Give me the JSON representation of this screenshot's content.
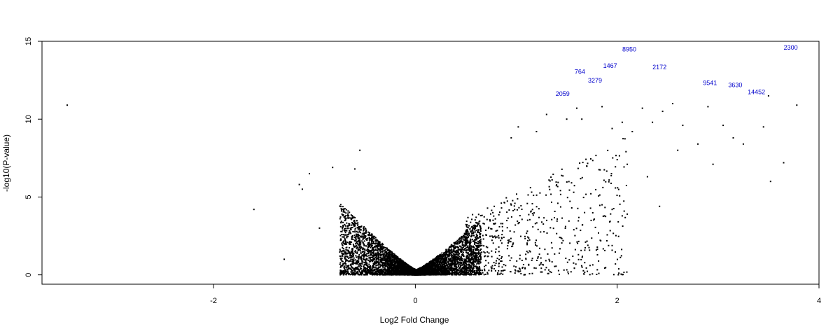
{
  "chart_data": {
    "type": "scatter",
    "title": "",
    "xlabel": "Log2 Fold Change",
    "ylabel": "-log10(P-value)",
    "xlim": [
      -3.7,
      4.0
    ],
    "ylim": [
      -0.6,
      15.0
    ],
    "x_ticks": [
      -2,
      0,
      2,
      4
    ],
    "y_ticks": [
      0,
      5,
      10,
      15
    ],
    "grid": false,
    "legend": "none",
    "point_color": "#000000",
    "label_color": "#0000cc",
    "labeled_points": [
      {
        "label": "8950",
        "x": 2.12,
        "y": 14.35
      },
      {
        "label": "2300",
        "x": 3.72,
        "y": 14.45
      },
      {
        "label": "764",
        "x": 1.63,
        "y": 12.9
      },
      {
        "label": "1467",
        "x": 1.93,
        "y": 13.3
      },
      {
        "label": "2172",
        "x": 2.42,
        "y": 13.2
      },
      {
        "label": "3279",
        "x": 1.78,
        "y": 12.35
      },
      {
        "label": "2059",
        "x": 1.46,
        "y": 11.5
      },
      {
        "label": "9541",
        "x": 2.92,
        "y": 12.2
      },
      {
        "label": "3630",
        "x": 3.17,
        "y": 12.05
      },
      {
        "label": "14452",
        "x": 3.38,
        "y": 11.6
      }
    ],
    "outliers": [
      [
        -3.45,
        10.9
      ],
      [
        -1.6,
        4.2
      ],
      [
        -1.3,
        1.0
      ],
      [
        -1.15,
        5.8
      ],
      [
        -1.12,
        5.5
      ],
      [
        -1.05,
        6.5
      ],
      [
        -0.95,
        3.0
      ],
      [
        -0.82,
        6.9
      ],
      [
        -0.55,
        8.0
      ],
      [
        -0.6,
        6.8
      ],
      [
        1.95,
        9.4
      ],
      [
        2.05,
        9.8
      ],
      [
        2.25,
        10.7
      ],
      [
        2.35,
        9.8
      ],
      [
        2.45,
        10.5
      ],
      [
        2.55,
        11.0
      ],
      [
        2.42,
        4.4
      ],
      [
        2.8,
        8.4
      ],
      [
        2.9,
        10.8
      ],
      [
        2.95,
        7.1
      ],
      [
        3.05,
        9.6
      ],
      [
        3.15,
        8.8
      ],
      [
        3.25,
        8.4
      ],
      [
        3.45,
        9.5
      ],
      [
        3.5,
        11.5
      ],
      [
        3.52,
        6.0
      ],
      [
        3.65,
        7.2
      ],
      [
        3.78,
        10.9
      ],
      [
        1.85,
        10.8
      ],
      [
        1.65,
        10.0
      ],
      [
        1.6,
        10.7
      ],
      [
        1.5,
        10.0
      ],
      [
        1.3,
        10.3
      ],
      [
        1.2,
        9.2
      ],
      [
        1.02,
        9.5
      ],
      [
        0.95,
        8.8
      ],
      [
        2.0,
        7.4
      ],
      [
        2.1,
        7.1
      ],
      [
        2.15,
        9.2
      ],
      [
        2.3,
        6.3
      ],
      [
        2.6,
        8.0
      ],
      [
        2.65,
        9.6
      ],
      [
        2.1,
        3.9
      ],
      [
        1.95,
        4.2
      ],
      [
        1.85,
        4.5
      ],
      [
        1.55,
        4.3
      ]
    ],
    "cluster_params": [
      {
        "name": "down",
        "side": -1,
        "n": 3400,
        "x_max": 0.75,
        "y_base": 0.35,
        "slope": 6.0,
        "y_exp": 1.15
      },
      {
        "name": "up-core",
        "side": 1,
        "n": 3200,
        "x_max": 0.65,
        "y_base": 0.3,
        "slope": 5.6,
        "y_exp": 1.2
      },
      {
        "name": "up-tail",
        "side": 1,
        "n": 650,
        "x_min": 0.5,
        "x_max": 2.1,
        "y_base": 2.0,
        "slope": 3.3,
        "y_exp": 1.0
      }
    ]
  }
}
